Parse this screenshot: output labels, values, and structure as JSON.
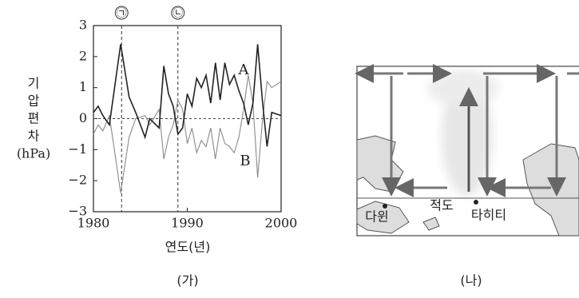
{
  "chart_data": {
    "type": "line",
    "ylabel": [
      "기",
      "압",
      "편",
      "차",
      "(hPa)"
    ],
    "xlabel": "연도(년)",
    "x": [
      1980,
      1980.5,
      1981,
      1981.7,
      1982.9,
      1983.8,
      1984.5,
      1985.5,
      1986,
      1987,
      1987.5,
      1988,
      1988.5,
      1989,
      1989.5,
      1990,
      1990.5,
      1991,
      1991.5,
      1992,
      1992.5,
      1993,
      1993.5,
      1994,
      1994.5,
      1995,
      1995.5,
      1996,
      1996.5,
      1997,
      1997.5,
      1998,
      1998.5,
      1999,
      2000
    ],
    "series": [
      {
        "name": "A",
        "color": "#222222",
        "values": [
          0.2,
          0.4,
          0.1,
          -0.2,
          2.4,
          0.7,
          0.2,
          -0.6,
          0,
          -0.3,
          1.7,
          0.8,
          0.4,
          -0.5,
          -0.3,
          0.8,
          0.4,
          1.3,
          1.0,
          1.4,
          0.5,
          1.8,
          0.6,
          1.8,
          1.1,
          1.4,
          0.9,
          0.5,
          -0.2,
          0.5,
          2.4,
          0.6,
          -0.9,
          0.2,
          0.1
        ]
      },
      {
        "name": "B",
        "color": "#8a8a8a",
        "values": [
          -0.5,
          -0.2,
          -0.4,
          0.1,
          -2.4,
          -0.6,
          0,
          0.1,
          -0.2,
          0.3,
          -1.3,
          -0.6,
          -0.2,
          0.6,
          0.3,
          -0.8,
          -0.3,
          -1.1,
          -0.7,
          -0.9,
          -0.3,
          -1.3,
          -0.3,
          -0.8,
          -0.9,
          -1.1,
          -0.6,
          0.3,
          1.4,
          0.5,
          -1.9,
          -0.1,
          1.2,
          1.0,
          1.2
        ]
      }
    ],
    "xlim": [
      1980,
      2000
    ],
    "xticks": [
      1980,
      1990,
      2000
    ],
    "ylim": [
      -3,
      3
    ],
    "yticks": [
      {
        "value": -3,
        "label": "−3"
      },
      {
        "value": -2,
        "label": "−2"
      },
      {
        "value": -1,
        "label": "−1"
      },
      0,
      1,
      2,
      3
    ],
    "annotations": [
      {
        "x": 1983,
        "label": "㉠"
      },
      {
        "x": 1989,
        "label": "㉡"
      }
    ]
  },
  "panel_labels": [
    "(가)",
    "(나)"
  ],
  "map": {
    "labels": [
      "다윈",
      "적도",
      "타히티"
    ]
  }
}
